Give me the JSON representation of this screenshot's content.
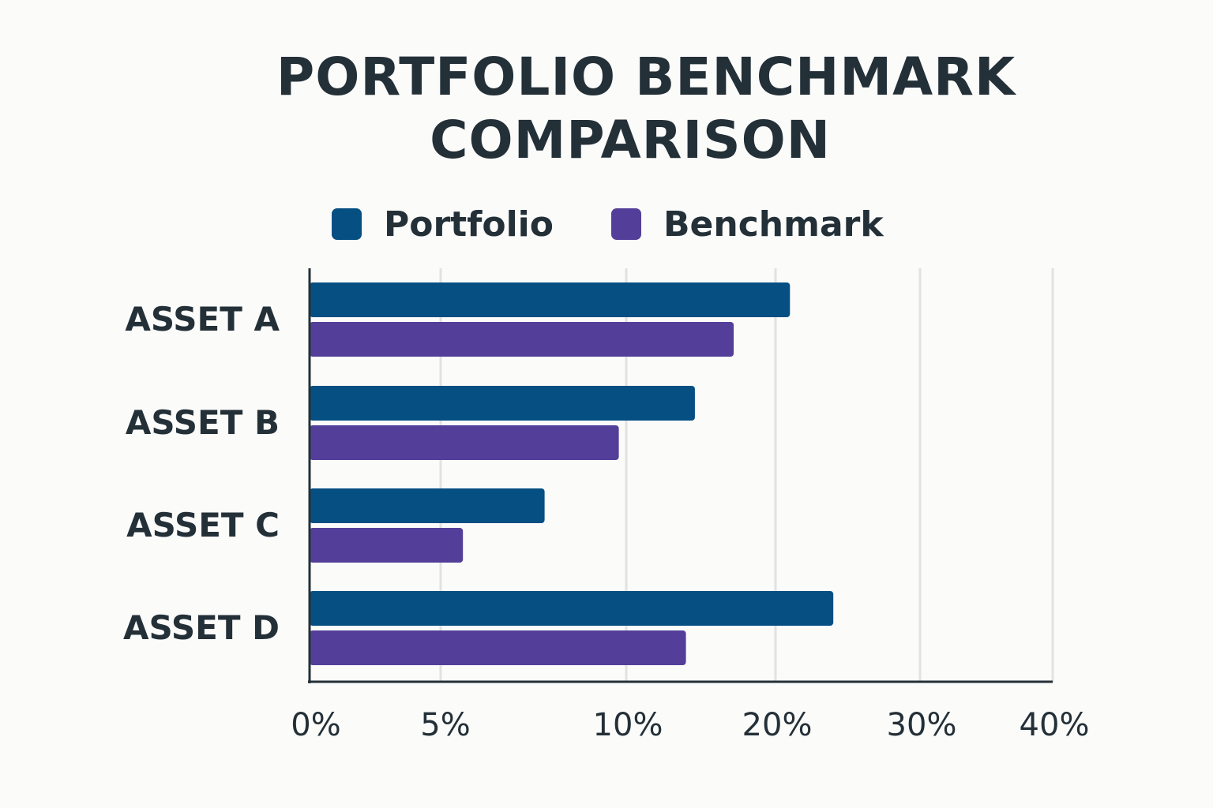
{
  "chart_data": {
    "type": "bar",
    "orientation": "horizontal",
    "title": "PORTFOLIO BENCHMARK COMPARISON",
    "title_lines": [
      "PORTFOLIO BENCHMARK",
      "COMPARISON"
    ],
    "categories": [
      "ASSET A",
      "ASSET B",
      "ASSET C",
      "ASSET D"
    ],
    "series": [
      {
        "name": "Portfolio",
        "color": "#054f82",
        "values": [
          21,
          14.6,
          7.8,
          24
        ]
      },
      {
        "name": "Benchmark",
        "color": "#533f99",
        "values": [
          17.2,
          9.8,
          5.6,
          14
        ]
      }
    ],
    "x_ticks": [
      "0%",
      "5%",
      "10%",
      "20%",
      "30%",
      "40%"
    ],
    "x_tick_values": [
      0,
      5,
      10,
      20,
      30,
      40
    ],
    "xlim": [
      0,
      40
    ],
    "xlabel": "",
    "ylabel": "",
    "grid": "vertical",
    "legend": "top-center"
  }
}
